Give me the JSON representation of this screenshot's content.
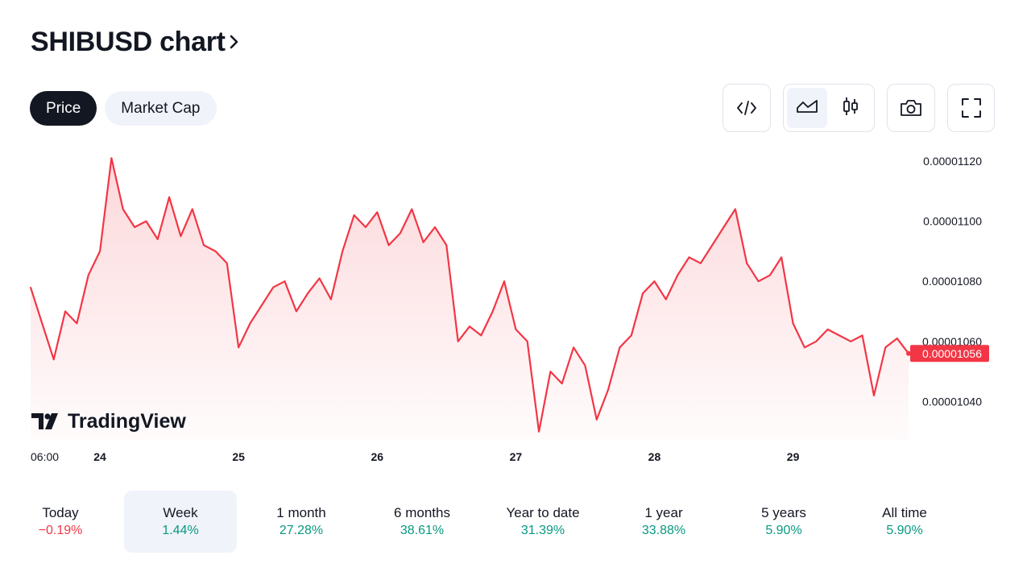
{
  "header": {
    "title": "SHIBUSD chart"
  },
  "tabs": [
    {
      "label": "Price",
      "active": true
    },
    {
      "label": "Market Cap",
      "active": false
    }
  ],
  "toolbar": {
    "embed_icon": "code-icon",
    "area_icon": "area-chart-icon",
    "candles_icon": "candlestick-icon",
    "snapshot_icon": "camera-icon",
    "fullscreen_icon": "fullscreen-icon",
    "active_style": "area"
  },
  "watermark": {
    "text": "TradingView"
  },
  "colors": {
    "line": "#f23645",
    "area_top": "#fcd6d9",
    "positive": "#089981",
    "negative": "#f23645",
    "text": "#131722"
  },
  "chart_data": {
    "type": "area",
    "symbol": "SHIBUSD",
    "current_price": "0.00001056",
    "y_ticks": [
      "0.00001120",
      "0.00001100",
      "0.00001080",
      "0.00001060",
      "0.00001040"
    ],
    "ylim": [
      1.027e-05,
      1.124e-05
    ],
    "x_ticks": [
      "06:00",
      "24",
      "25",
      "26",
      "27",
      "28",
      "29"
    ],
    "x_tick_index": [
      0,
      6,
      18,
      30,
      42,
      54,
      66
    ],
    "x_range": [
      0,
      76
    ],
    "values": [
      1.078e-05,
      1.066e-05,
      1.054e-05,
      1.07e-05,
      1.066e-05,
      1.082e-05,
      1.09e-05,
      1.121e-05,
      1.104e-05,
      1.098e-05,
      1.1e-05,
      1.094e-05,
      1.108e-05,
      1.095e-05,
      1.104e-05,
      1.092e-05,
      1.09e-05,
      1.086e-05,
      1.058e-05,
      1.066e-05,
      1.072e-05,
      1.078e-05,
      1.08e-05,
      1.07e-05,
      1.076e-05,
      1.081e-05,
      1.074e-05,
      1.09e-05,
      1.102e-05,
      1.098e-05,
      1.103e-05,
      1.092e-05,
      1.096e-05,
      1.104e-05,
      1.093e-05,
      1.098e-05,
      1.092e-05,
      1.06e-05,
      1.065e-05,
      1.062e-05,
      1.07e-05,
      1.08e-05,
      1.064e-05,
      1.06e-05,
      1.03e-05,
      1.05e-05,
      1.046e-05,
      1.058e-05,
      1.052e-05,
      1.034e-05,
      1.044e-05,
      1.058e-05,
      1.062e-05,
      1.076e-05,
      1.08e-05,
      1.074e-05,
      1.082e-05,
      1.088e-05,
      1.086e-05,
      1.092e-05,
      1.098e-05,
      1.104e-05,
      1.086e-05,
      1.08e-05,
      1.082e-05,
      1.088e-05,
      1.066e-05,
      1.058e-05,
      1.06e-05,
      1.064e-05,
      1.062e-05,
      1.06e-05,
      1.062e-05,
      1.042e-05,
      1.058e-05,
      1.061e-05,
      1.056e-05
    ]
  },
  "periods": [
    {
      "label": "Today",
      "value": "−0.19%",
      "sign": "neg",
      "active": false
    },
    {
      "label": "Week",
      "value": "1.44%",
      "sign": "pos",
      "active": true
    },
    {
      "label": "1 month",
      "value": "27.28%",
      "sign": "pos",
      "active": false
    },
    {
      "label": "6 months",
      "value": "38.61%",
      "sign": "pos",
      "active": false
    },
    {
      "label": "Year to date",
      "value": "31.39%",
      "sign": "pos",
      "active": false
    },
    {
      "label": "1 year",
      "value": "33.88%",
      "sign": "pos",
      "active": false
    },
    {
      "label": "5 years",
      "value": "5.90%",
      "sign": "pos",
      "active": false
    },
    {
      "label": "All time",
      "value": "5.90%",
      "sign": "pos",
      "active": false
    }
  ]
}
